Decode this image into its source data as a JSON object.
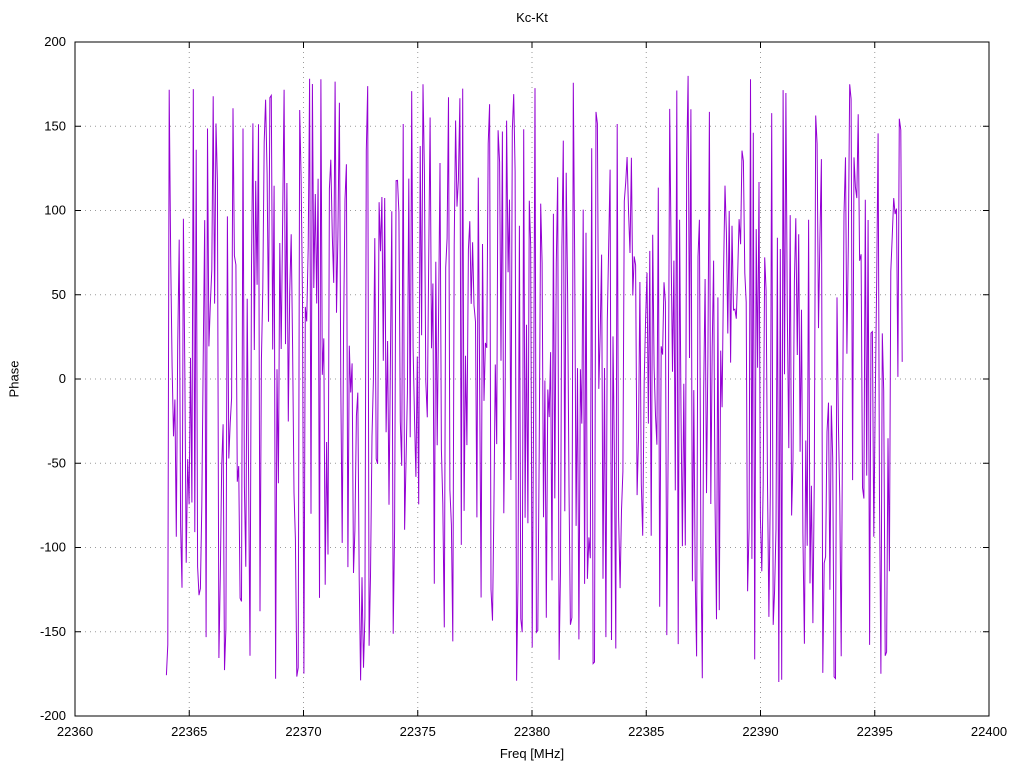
{
  "chart_data": {
    "type": "line",
    "title": "Kc-Kt",
    "xlabel": "Freq [MHz]",
    "ylabel": "Phase",
    "xlim": [
      22360,
      22400
    ],
    "ylim": [
      -200,
      200
    ],
    "x_ticks": [
      22360,
      22365,
      22370,
      22375,
      22380,
      22385,
      22390,
      22395,
      22400
    ],
    "y_ticks": [
      -200,
      -150,
      -100,
      -50,
      0,
      50,
      100,
      150,
      200
    ],
    "grid": true,
    "legend": "none",
    "series": [
      {
        "name": "phase",
        "color": "#9400d3",
        "description": "dense wrapped phase noise, values uniformly scattered between -180 and +180 degrees across the measured band",
        "data_x_start": 22364.0,
        "data_x_end": 22396.2,
        "n_points": 520,
        "y_min": -180,
        "y_max": 180,
        "distribution": "uniform-random-phase",
        "seed": 7
      }
    ]
  }
}
